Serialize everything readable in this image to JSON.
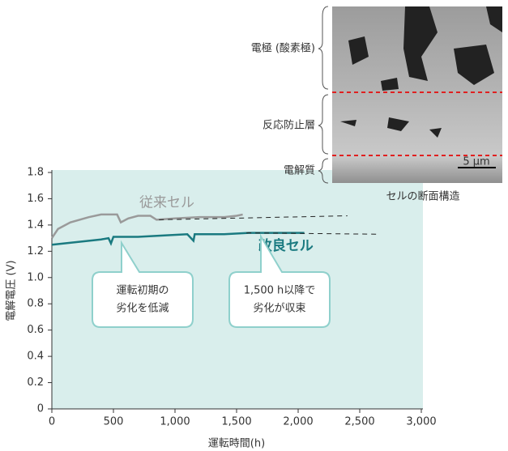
{
  "chart_data": {
    "type": "line",
    "xlabel": "運転時間(h)",
    "ylabel": "電解電圧 (V)",
    "xlim": [
      0,
      3000
    ],
    "xticks": [
      0,
      500,
      {
        "value": 1000,
        "label": "1,000"
      },
      {
        "value": 1500,
        "label": "1,500"
      },
      {
        "value": 2000,
        "label": "2,000"
      },
      {
        "value": 2500,
        "label": "2,500"
      },
      {
        "value": 3000,
        "label": "3,000"
      }
    ],
    "ylim": [
      0,
      1.8
    ],
    "yticks": [
      0,
      0.2,
      0.4,
      0.6,
      0.8,
      {
        "value": 1,
        "label": "1.0"
      },
      1.2,
      1.4,
      1.6,
      1.8
    ],
    "background": "#d9eeec",
    "series": [
      {
        "name": "従来セル",
        "color": "#9a9a9a",
        "x": [
          0,
          50,
          150,
          300,
          400,
          530,
          560,
          620,
          700,
          800,
          850,
          1000,
          1200,
          1400,
          1500,
          1550
        ],
        "values": [
          1.3,
          1.37,
          1.42,
          1.46,
          1.48,
          1.48,
          1.42,
          1.45,
          1.47,
          1.47,
          1.44,
          1.45,
          1.46,
          1.46,
          1.47,
          1.48
        ],
        "trend": {
          "x": [
            870,
            2400
          ],
          "values": [
            1.44,
            1.47
          ]
        }
      },
      {
        "name": "改良セル",
        "color": "#1a7a80",
        "x": [
          0,
          200,
          400,
          460,
          480,
          500,
          700,
          900,
          1100,
          1150,
          1160,
          1400,
          1600,
          1800,
          2050
        ],
        "values": [
          1.25,
          1.27,
          1.29,
          1.3,
          1.26,
          1.31,
          1.31,
          1.32,
          1.33,
          1.28,
          1.33,
          1.33,
          1.34,
          1.34,
          1.34
        ],
        "trend": {
          "x": [
            1580,
            2650
          ],
          "values": [
            1.34,
            1.33
          ]
        }
      }
    ],
    "annotations": [
      {
        "lines": [
          "運転初期の",
          "劣化を低減"
        ]
      },
      {
        "lines": [
          "1,500 h以降で",
          "劣化が収束"
        ]
      }
    ],
    "inset": {
      "layers": [
        "電極 (酸素極)",
        "反応防止層",
        "電解質"
      ],
      "scale": "5 µm",
      "caption": "セルの断面構造"
    }
  }
}
